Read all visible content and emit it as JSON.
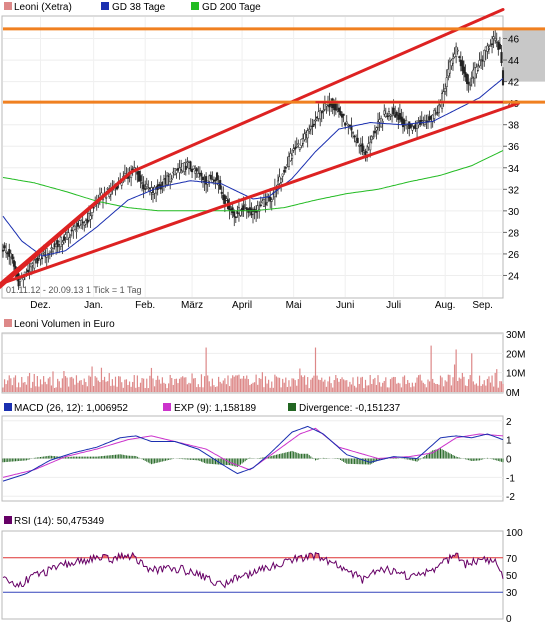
{
  "chart_data": [
    {
      "type": "candlestick",
      "panel": "price",
      "legend": [
        {
          "label": "Leoni (Xetra)",
          "color": "#dd8888"
        },
        {
          "label": "GD 38 Tage",
          "color": "#1a2fb0"
        },
        {
          "label": "GD 200 Tage",
          "color": "#22bb22"
        }
      ],
      "ylim": [
        22,
        48
      ],
      "yticks": [
        "24",
        "26",
        "28",
        "30",
        "32",
        "34",
        "36",
        "38",
        "40",
        "42",
        "44",
        "46"
      ],
      "xticks": [
        "Dez.",
        "Jan.",
        "Feb.",
        "März",
        "April",
        "Mai",
        "Juni",
        "Juli",
        "Aug.",
        "Sep."
      ],
      "date_range_note": "01.11.12 - 20.09.13   1 Tick = 1 Tag",
      "last_close": 42.0,
      "shaded_range": [
        42,
        47
      ],
      "close_anchors": [
        [
          0,
          26.5
        ],
        [
          5,
          25.8
        ],
        [
          10,
          23.4
        ],
        [
          15,
          24.2
        ],
        [
          22,
          25.5
        ],
        [
          30,
          26.4
        ],
        [
          38,
          27.3
        ],
        [
          46,
          28.4
        ],
        [
          54,
          29.2
        ],
        [
          62,
          31.2
        ],
        [
          70,
          32.0
        ],
        [
          78,
          33.1
        ],
        [
          84,
          33.8
        ],
        [
          90,
          32.3
        ],
        [
          96,
          31.8
        ],
        [
          102,
          32.5
        ],
        [
          110,
          33.6
        ],
        [
          118,
          34.3
        ],
        [
          124,
          33.5
        ],
        [
          130,
          32.8
        ],
        [
          136,
          33.2
        ],
        [
          142,
          31.0
        ],
        [
          148,
          29.6
        ],
        [
          154,
          30.3
        ],
        [
          160,
          29.9
        ],
        [
          166,
          30.6
        ],
        [
          172,
          31.3
        ],
        [
          178,
          33.1
        ],
        [
          184,
          35.2
        ],
        [
          192,
          36.6
        ],
        [
          198,
          37.8
        ],
        [
          204,
          39.4
        ],
        [
          210,
          40.1
        ],
        [
          216,
          39.0
        ],
        [
          222,
          37.5
        ],
        [
          228,
          36.1
        ],
        [
          232,
          35.3
        ],
        [
          238,
          37.4
        ],
        [
          244,
          38.9
        ],
        [
          250,
          39.2
        ],
        [
          256,
          38.2
        ],
        [
          262,
          37.7
        ],
        [
          268,
          38.3
        ],
        [
          274,
          38.7
        ],
        [
          280,
          39.9
        ],
        [
          286,
          43.5
        ],
        [
          290,
          45.1
        ],
        [
          294,
          43.2
        ],
        [
          298,
          41.6
        ],
        [
          302,
          43.1
        ],
        [
          306,
          43.9
        ],
        [
          310,
          45.2
        ],
        [
          314,
          46.0
        ],
        [
          318,
          44.8
        ],
        [
          320,
          42.0
        ]
      ],
      "ma38_anchors": [
        [
          0,
          29.5
        ],
        [
          12,
          27.2
        ],
        [
          25,
          25.8
        ],
        [
          40,
          26.3
        ],
        [
          60,
          28.5
        ],
        [
          80,
          31.0
        ],
        [
          100,
          32.2
        ],
        [
          120,
          32.8
        ],
        [
          140,
          32.5
        ],
        [
          160,
          31.1
        ],
        [
          170,
          31.3
        ],
        [
          185,
          33.0
        ],
        [
          200,
          35.5
        ],
        [
          215,
          37.6
        ],
        [
          235,
          38.2
        ],
        [
          255,
          38.0
        ],
        [
          275,
          38.3
        ],
        [
          290,
          39.4
        ],
        [
          305,
          40.5
        ],
        [
          320,
          42.3
        ]
      ],
      "ma200_anchors": [
        [
          0,
          33.1
        ],
        [
          20,
          32.6
        ],
        [
          40,
          31.8
        ],
        [
          60,
          30.9
        ],
        [
          80,
          30.3
        ],
        [
          100,
          30.0
        ],
        [
          120,
          30.0
        ],
        [
          140,
          30.0
        ],
        [
          160,
          30.0
        ],
        [
          180,
          30.3
        ],
        [
          200,
          31.0
        ],
        [
          220,
          31.6
        ],
        [
          240,
          32.0
        ],
        [
          260,
          32.7
        ],
        [
          280,
          33.3
        ],
        [
          300,
          34.2
        ],
        [
          320,
          35.6
        ]
      ],
      "upper_channel": [
        [
          -2,
          22.9
        ],
        [
          82,
          33.6
        ],
        [
          320,
          48.7
        ]
      ],
      "lower_channel": [
        [
          -2,
          23.2
        ],
        [
          330,
          40.0
        ]
      ],
      "upper_base_line": [
        [
          -2,
          23.2
        ],
        [
          82,
          33.6
        ]
      ],
      "horizontal_lines": [
        46.9,
        40.1
      ],
      "support_segment": {
        "x": [
          200,
          320
        ],
        "y": 40.1
      }
    },
    {
      "type": "bar",
      "panel": "volume",
      "legend": [
        {
          "label": "Leoni Volumen in Euro",
          "color": "#dd8888"
        }
      ],
      "yticks": [
        "0M",
        "10M",
        "20M",
        "30M"
      ],
      "ylim": [
        0,
        30
      ],
      "volume_peaks": [
        [
          130,
          23
        ],
        [
          200,
          23
        ],
        [
          274,
          24
        ],
        [
          290,
          22
        ],
        [
          300,
          20
        ]
      ]
    },
    {
      "type": "line",
      "panel": "macd",
      "legend": [
        {
          "label": "MACD (26, 12): 1,006952",
          "color": "#1a2fb0"
        },
        {
          "label": "EXP (9): 1,158189",
          "color": "#cc33cc"
        },
        {
          "label": "Divergence: -0,151237",
          "color": "#226622"
        }
      ],
      "yticks": [
        "2",
        "1",
        "0",
        "-1",
        "-2"
      ],
      "ylim": [
        -2.2,
        2.2
      ],
      "macd_anchors": [
        [
          0,
          -1.2
        ],
        [
          15,
          -0.8
        ],
        [
          30,
          -0.1
        ],
        [
          45,
          0.3
        ],
        [
          60,
          0.6
        ],
        [
          75,
          1.1
        ],
        [
          85,
          1.2
        ],
        [
          95,
          0.9
        ],
        [
          110,
          0.9
        ],
        [
          125,
          0.5
        ],
        [
          140,
          -0.3
        ],
        [
          150,
          -0.8
        ],
        [
          160,
          -0.5
        ],
        [
          170,
          0.2
        ],
        [
          185,
          1.4
        ],
        [
          195,
          1.7
        ],
        [
          205,
          1.3
        ],
        [
          220,
          0.2
        ],
        [
          235,
          -0.2
        ],
        [
          250,
          0.1
        ],
        [
          265,
          0.0
        ],
        [
          280,
          1.1
        ],
        [
          290,
          1.2
        ],
        [
          300,
          1.1
        ],
        [
          310,
          1.3
        ],
        [
          320,
          1.0
        ]
      ],
      "exp_anchors": [
        [
          0,
          -1.0
        ],
        [
          20,
          -0.6
        ],
        [
          40,
          0.1
        ],
        [
          60,
          0.5
        ],
        [
          80,
          1.0
        ],
        [
          95,
          1.2
        ],
        [
          110,
          0.9
        ],
        [
          130,
          0.5
        ],
        [
          145,
          -0.2
        ],
        [
          158,
          -0.6
        ],
        [
          175,
          0.4
        ],
        [
          190,
          1.3
        ],
        [
          200,
          1.6
        ],
        [
          215,
          0.6
        ],
        [
          240,
          0.0
        ],
        [
          260,
          0.1
        ],
        [
          275,
          0.3
        ],
        [
          290,
          1.1
        ],
        [
          305,
          1.3
        ],
        [
          320,
          1.2
        ]
      ]
    },
    {
      "type": "line",
      "panel": "rsi",
      "legend": [
        {
          "label": "RSI (14): 50,475349",
          "color": "#660066"
        }
      ],
      "yticks": [
        "100",
        "70",
        "50",
        "30",
        "0"
      ],
      "ylim": [
        0,
        100
      ],
      "reference_levels": [
        70,
        30
      ],
      "rsi_anchors": [
        [
          0,
          45
        ],
        [
          10,
          38
        ],
        [
          20,
          50
        ],
        [
          30,
          55
        ],
        [
          40,
          62
        ],
        [
          50,
          66
        ],
        [
          60,
          70
        ],
        [
          70,
          68
        ],
        [
          80,
          74
        ],
        [
          86,
          68
        ],
        [
          95,
          55
        ],
        [
          110,
          58
        ],
        [
          125,
          52
        ],
        [
          135,
          42
        ],
        [
          140,
          38
        ],
        [
          150,
          48
        ],
        [
          160,
          52
        ],
        [
          170,
          58
        ],
        [
          180,
          66
        ],
        [
          190,
          70
        ],
        [
          200,
          72
        ],
        [
          210,
          64
        ],
        [
          220,
          56
        ],
        [
          230,
          45
        ],
        [
          240,
          58
        ],
        [
          250,
          55
        ],
        [
          260,
          48
        ],
        [
          270,
          52
        ],
        [
          280,
          62
        ],
        [
          290,
          74
        ],
        [
          295,
          62
        ],
        [
          305,
          68
        ],
        [
          315,
          66
        ],
        [
          320,
          50
        ]
      ]
    }
  ]
}
